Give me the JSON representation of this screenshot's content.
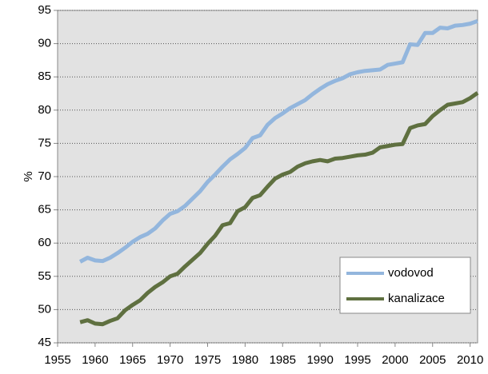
{
  "chart_data": {
    "type": "line",
    "y_label": "%",
    "x": [
      1958,
      1959,
      1960,
      1961,
      1962,
      1963,
      1964,
      1965,
      1966,
      1967,
      1968,
      1969,
      1970,
      1971,
      1972,
      1973,
      1974,
      1975,
      1976,
      1977,
      1978,
      1979,
      1980,
      1981,
      1982,
      1983,
      1984,
      1985,
      1986,
      1987,
      1988,
      1989,
      1990,
      1991,
      1992,
      1993,
      1994,
      1995,
      1996,
      1997,
      1998,
      1999,
      2000,
      2001,
      2002,
      2003,
      2004,
      2005,
      2006,
      2007,
      2008,
      2009,
      2010,
      2011
    ],
    "series": [
      {
        "name": "vodovod",
        "color": "#93b6dd",
        "values": [
          57.2,
          57.8,
          57.4,
          57.3,
          57.8,
          58.5,
          59.3,
          60.2,
          60.9,
          61.4,
          62.2,
          63.4,
          64.4,
          64.8,
          65.6,
          66.7,
          67.8,
          69.2,
          70.3,
          71.5,
          72.6,
          73.4,
          74.3,
          75.8,
          76.2,
          77.8,
          78.8,
          79.5,
          80.3,
          80.9,
          81.5,
          82.4,
          83.2,
          83.9,
          84.4,
          84.8,
          85.4,
          85.7,
          85.9,
          86.0,
          86.1,
          86.8,
          87.0,
          87.2,
          89.9,
          89.8,
          91.6,
          91.6,
          92.4,
          92.3,
          92.7,
          92.8,
          93.0,
          93.4
        ]
      },
      {
        "name": "kanalizace",
        "color": "#5f7040",
        "values": [
          48.1,
          48.4,
          47.9,
          47.8,
          48.3,
          48.7,
          49.9,
          50.7,
          51.4,
          52.5,
          53.4,
          54.1,
          55.0,
          55.4,
          56.5,
          57.5,
          58.5,
          59.9,
          61.1,
          62.7,
          63.0,
          64.8,
          65.4,
          66.8,
          67.2,
          68.5,
          69.7,
          70.3,
          70.7,
          71.5,
          72.0,
          72.3,
          72.5,
          72.3,
          72.7,
          72.8,
          73.0,
          73.2,
          73.3,
          73.6,
          74.4,
          74.6,
          74.8,
          74.9,
          77.3,
          77.7,
          77.9,
          79.1,
          80.0,
          80.8,
          81.0,
          81.2,
          81.8,
          82.6
        ]
      }
    ],
    "xlim": [
      1955,
      2011
    ],
    "xticks": [
      1955,
      1960,
      1965,
      1970,
      1975,
      1980,
      1985,
      1990,
      1995,
      2000,
      2005,
      2010
    ],
    "ylim": [
      45,
      95
    ],
    "yticks": [
      45,
      50,
      55,
      60,
      65,
      70,
      75,
      80,
      85,
      90,
      95
    ],
    "grid": true,
    "legend": "lower right"
  }
}
